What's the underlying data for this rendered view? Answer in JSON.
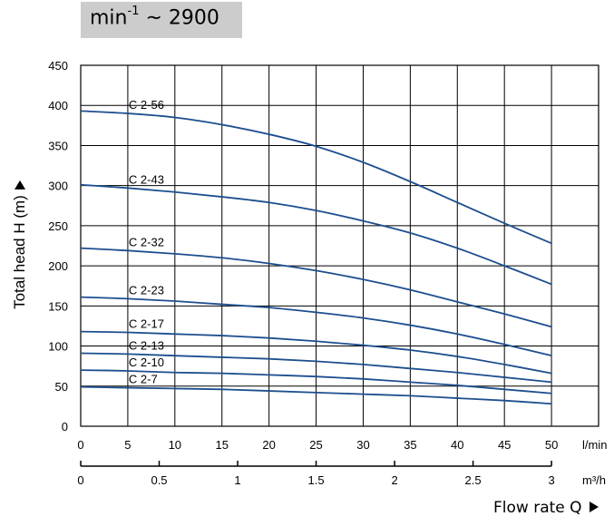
{
  "speed": {
    "base": "min",
    "exp": "-1",
    "value": "~ 2900"
  },
  "chart_data": {
    "type": "line",
    "xlabel": "Flow rate  Q",
    "ylabel": "Total head H (m)",
    "xlim": [
      0,
      55
    ],
    "x_ticks": [
      "0",
      "5",
      "10",
      "15",
      "20",
      "25",
      "30",
      "35",
      "40",
      "45",
      "50"
    ],
    "x_unit": "l/min",
    "x2_ticks": [
      "0",
      "0.5",
      "1",
      "1.5",
      "2",
      "2.5",
      "3"
    ],
    "x2_unit": "m³/h",
    "y_ticks": [
      "0",
      "50",
      "100",
      "150",
      "200",
      "250",
      "300",
      "350",
      "400",
      "450"
    ],
    "ytick_labels": [
      "0",
      "50",
      "100",
      "150",
      "200",
      "250",
      "300",
      "350",
      "400",
      "450"
    ],
    "ylim": [
      0,
      450
    ],
    "grid": true,
    "series": [
      {
        "name": "C 2-56",
        "x": [
          0,
          5,
          10,
          15,
          20,
          25,
          30,
          35,
          40,
          45,
          50
        ],
        "y": [
          393,
          390,
          385,
          376,
          364,
          349,
          329,
          305,
          279,
          253,
          228
        ]
      },
      {
        "name": "C 2-43",
        "x": [
          0,
          5,
          10,
          15,
          20,
          25,
          30,
          35,
          40,
          45,
          50
        ],
        "y": [
          301,
          297,
          292,
          286,
          279,
          269,
          256,
          241,
          222,
          200,
          177
        ]
      },
      {
        "name": "C 2-32",
        "x": [
          0,
          5,
          10,
          15,
          20,
          25,
          30,
          35,
          40,
          45,
          50
        ],
        "y": [
          222,
          219,
          215,
          210,
          203,
          194,
          183,
          170,
          155,
          140,
          124
        ]
      },
      {
        "name": "C 2-23",
        "x": [
          0,
          5,
          10,
          15,
          20,
          25,
          30,
          35,
          40,
          45,
          50
        ],
        "y": [
          161,
          159,
          156,
          152,
          148,
          142,
          135,
          126,
          115,
          102,
          88
        ]
      },
      {
        "name": "C 2-17",
        "x": [
          0,
          5,
          10,
          15,
          20,
          25,
          30,
          35,
          40,
          45,
          50
        ],
        "y": [
          118,
          117,
          115,
          113,
          110,
          106,
          101,
          95,
          87,
          77,
          66
        ]
      },
      {
        "name": "C 2-13",
        "x": [
          0,
          5,
          10,
          15,
          20,
          25,
          30,
          35,
          40,
          45,
          50
        ],
        "y": [
          91,
          90,
          88,
          86,
          84,
          81,
          77,
          72,
          67,
          61,
          55
        ]
      },
      {
        "name": "C 2-10",
        "x": [
          0,
          5,
          10,
          15,
          20,
          25,
          30,
          35,
          40,
          45,
          50
        ],
        "y": [
          70,
          69,
          67,
          66,
          64,
          62,
          59,
          55,
          51,
          46,
          41
        ]
      },
      {
        "name": "C 2-7",
        "x": [
          0,
          5,
          10,
          15,
          20,
          25,
          30,
          35,
          40,
          45,
          50
        ],
        "y": [
          49,
          48,
          47,
          46,
          44,
          42,
          40,
          38,
          35,
          32,
          28
        ]
      }
    ]
  },
  "colors": {
    "curve": "#1d4e8f",
    "grid": "#000000",
    "plot_bg": "#ffffff"
  }
}
